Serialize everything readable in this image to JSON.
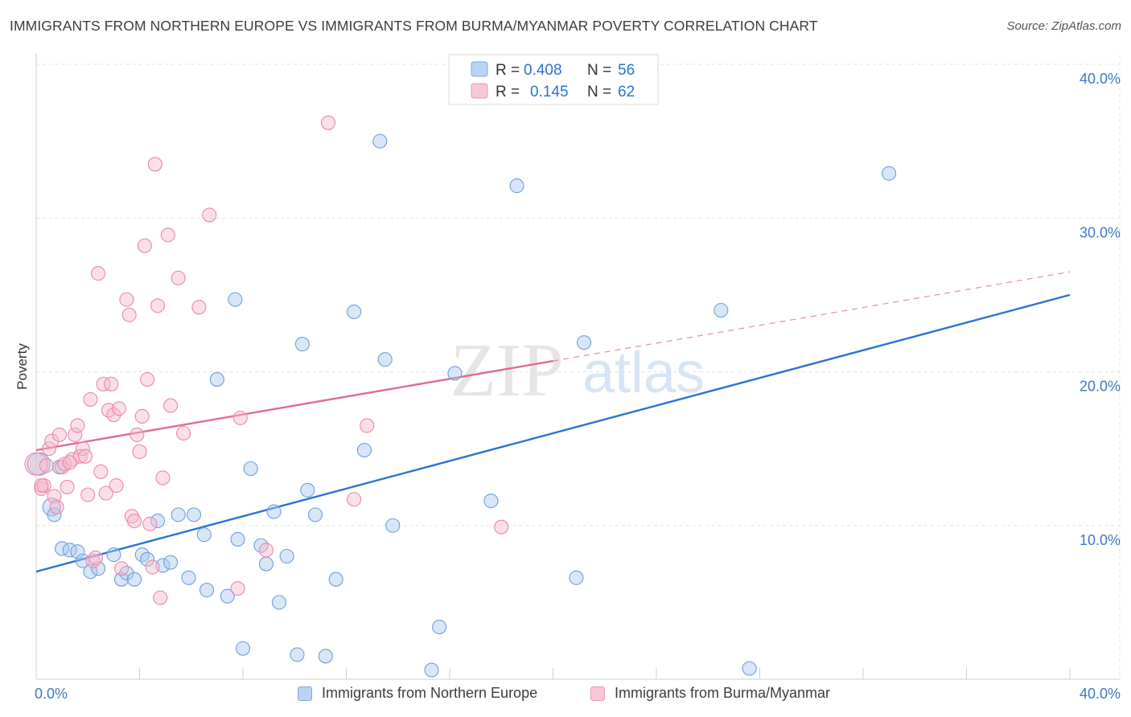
{
  "title": "IMMIGRANTS FROM NORTHERN EUROPE VS IMMIGRANTS FROM BURMA/MYANMAR POVERTY CORRELATION CHART",
  "source": "Source: ZipAtlas.com",
  "watermark": {
    "zip": "ZIP",
    "atlas": "atlas"
  },
  "chart_data": {
    "type": "scatter",
    "title": "IMMIGRANTS FROM NORTHERN EUROPE VS IMMIGRANTS FROM BURMA/MYANMAR POVERTY CORRELATION CHART",
    "xlabel": "",
    "ylabel": "Poverty",
    "xlim": [
      0,
      40
    ],
    "ylim": [
      0,
      40
    ],
    "x_tick_labels": [
      "0.0%",
      "40.0%"
    ],
    "y_ticks": [
      10,
      20,
      30,
      40
    ],
    "y_tick_labels": [
      "10.0%",
      "20.0%",
      "30.0%",
      "40.0%"
    ],
    "grid": true,
    "legend_position": "top-center",
    "series": [
      {
        "name": "Immigrants from Northern Europe",
        "color": "#a8c8f0",
        "stroke": "#6f9fd8",
        "line_color": "#2a73d0",
        "r_label": "R =",
        "r_value": "0.408",
        "n_label": "N =",
        "n_value": "56",
        "trend": {
          "x0": 0,
          "y0": 7.0,
          "x1": 40,
          "y1": 25.0,
          "dashed_from": null
        },
        "points": [
          [
            0.1,
            14.0
          ],
          [
            0.6,
            11.2
          ],
          [
            0.7,
            10.7
          ],
          [
            1.0,
            8.5
          ],
          [
            1.3,
            8.4
          ],
          [
            1.6,
            8.3
          ],
          [
            1.8,
            7.7
          ],
          [
            2.1,
            7.0
          ],
          [
            2.4,
            7.2
          ],
          [
            3.0,
            8.1
          ],
          [
            3.3,
            6.5
          ],
          [
            3.5,
            6.9
          ],
          [
            3.8,
            6.5
          ],
          [
            4.1,
            8.1
          ],
          [
            4.3,
            7.8
          ],
          [
            4.7,
            10.3
          ],
          [
            4.9,
            7.4
          ],
          [
            5.2,
            7.6
          ],
          [
            5.5,
            10.7
          ],
          [
            5.9,
            6.6
          ],
          [
            6.1,
            10.7
          ],
          [
            6.5,
            9.4
          ],
          [
            6.6,
            5.8
          ],
          [
            7.0,
            19.5
          ],
          [
            7.4,
            5.4
          ],
          [
            7.7,
            24.7
          ],
          [
            7.8,
            9.1
          ],
          [
            8.0,
            2.0
          ],
          [
            8.3,
            13.7
          ],
          [
            8.7,
            8.7
          ],
          [
            8.9,
            7.5
          ],
          [
            9.2,
            10.9
          ],
          [
            9.4,
            5.0
          ],
          [
            9.7,
            8.0
          ],
          [
            10.1,
            1.6
          ],
          [
            10.3,
            21.8
          ],
          [
            10.5,
            12.3
          ],
          [
            10.8,
            10.7
          ],
          [
            11.2,
            1.5
          ],
          [
            11.6,
            6.5
          ],
          [
            12.3,
            23.9
          ],
          [
            12.7,
            14.9
          ],
          [
            13.3,
            35.0
          ],
          [
            13.5,
            20.8
          ],
          [
            13.8,
            10.0
          ],
          [
            15.3,
            0.6
          ],
          [
            15.6,
            3.4
          ],
          [
            16.2,
            19.9
          ],
          [
            17.6,
            11.6
          ],
          [
            18.6,
            32.1
          ],
          [
            20.9,
            6.6
          ],
          [
            21.2,
            21.9
          ],
          [
            26.5,
            24.0
          ],
          [
            27.6,
            0.7
          ],
          [
            33.0,
            32.9
          ],
          [
            0.9,
            13.8
          ]
        ]
      },
      {
        "name": "Immigrants from Burma/Myanmar",
        "color": "#f7b8cc",
        "stroke": "#e98aaa",
        "line_color": "#e06c93",
        "r_label": "R =",
        "r_value": "0.145",
        "n_label": "N =",
        "n_value": "62",
        "trend": {
          "x0": 0,
          "y0": 14.9,
          "x1": 40,
          "y1": 26.5,
          "dashed_from": 20
        },
        "points": [
          [
            0.0,
            14.0
          ],
          [
            0.2,
            12.4
          ],
          [
            0.3,
            12.6
          ],
          [
            0.5,
            15.0
          ],
          [
            0.6,
            15.5
          ],
          [
            0.7,
            11.9
          ],
          [
            0.8,
            11.2
          ],
          [
            0.9,
            15.9
          ],
          [
            1.0,
            13.8
          ],
          [
            1.1,
            14.0
          ],
          [
            1.2,
            12.5
          ],
          [
            1.4,
            14.3
          ],
          [
            1.5,
            15.9
          ],
          [
            1.6,
            16.5
          ],
          [
            1.7,
            14.5
          ],
          [
            1.8,
            15.0
          ],
          [
            1.9,
            14.5
          ],
          [
            2.0,
            12.0
          ],
          [
            2.1,
            18.2
          ],
          [
            2.2,
            7.7
          ],
          [
            2.3,
            7.9
          ],
          [
            2.5,
            13.5
          ],
          [
            2.6,
            19.2
          ],
          [
            2.7,
            12.1
          ],
          [
            2.8,
            17.5
          ],
          [
            2.9,
            19.2
          ],
          [
            3.0,
            17.2
          ],
          [
            3.1,
            12.6
          ],
          [
            3.2,
            17.6
          ],
          [
            3.5,
            24.7
          ],
          [
            3.6,
            23.7
          ],
          [
            3.7,
            10.6
          ],
          [
            3.8,
            10.3
          ],
          [
            3.9,
            15.9
          ],
          [
            4.0,
            14.8
          ],
          [
            4.1,
            17.1
          ],
          [
            4.2,
            28.2
          ],
          [
            4.3,
            19.5
          ],
          [
            4.4,
            10.1
          ],
          [
            4.5,
            7.3
          ],
          [
            4.6,
            33.5
          ],
          [
            4.7,
            24.3
          ],
          [
            4.8,
            5.3
          ],
          [
            4.9,
            13.1
          ],
          [
            5.1,
            28.9
          ],
          [
            5.2,
            17.8
          ],
          [
            5.5,
            26.1
          ],
          [
            5.7,
            16.0
          ],
          [
            6.3,
            24.2
          ],
          [
            6.7,
            30.2
          ],
          [
            7.8,
            5.9
          ],
          [
            7.9,
            17.0
          ],
          [
            8.9,
            8.4
          ],
          [
            11.3,
            36.2
          ],
          [
            12.3,
            11.7
          ],
          [
            12.8,
            16.5
          ],
          [
            18.0,
            9.9
          ],
          [
            0.4,
            13.9
          ],
          [
            1.3,
            14.1
          ],
          [
            2.4,
            26.4
          ],
          [
            0.2,
            12.6
          ],
          [
            3.3,
            7.2
          ]
        ]
      }
    ]
  }
}
